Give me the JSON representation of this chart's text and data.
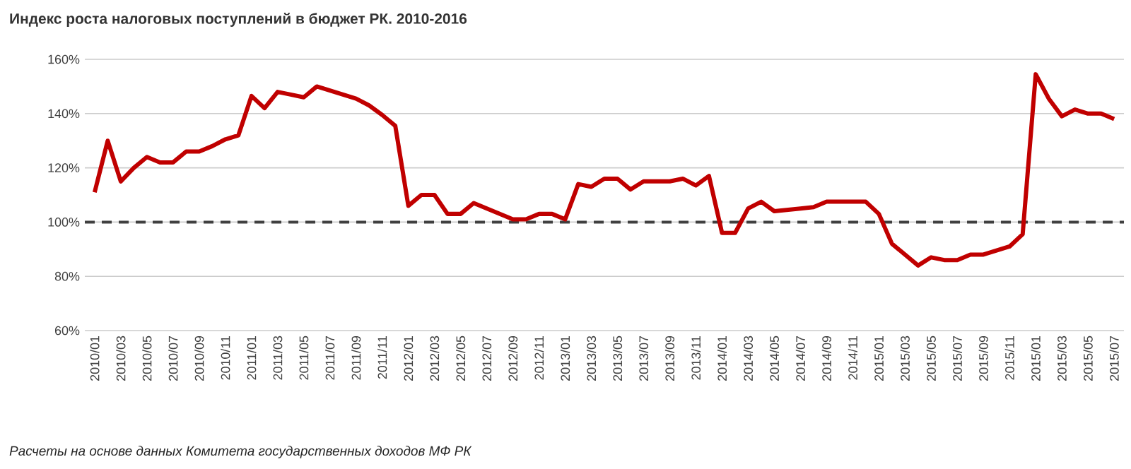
{
  "chart_data": {
    "type": "line",
    "title": "Индекс роста налоговых поступлений  в бюджет РК. 2010-2016",
    "categories": [
      "2010/01",
      null,
      "2010/03",
      null,
      "2010/05",
      null,
      "2010/07",
      null,
      "2010/09",
      null,
      "2010/11",
      null,
      "2011/01",
      null,
      "2011/03",
      null,
      "2011/05",
      null,
      "2011/07",
      null,
      "2011/09",
      null,
      "2011/11",
      null,
      "2012/01",
      null,
      "2012/03",
      null,
      "2012/05",
      null,
      "2012/07",
      null,
      "2012/09",
      null,
      "2012/11",
      null,
      "2013/01",
      null,
      "2013/03",
      null,
      "2013/05",
      null,
      "2013/07",
      null,
      "2013/09",
      null,
      "2013/11",
      null,
      "2014/01",
      null,
      "2014/03",
      null,
      "2014/05",
      null,
      "2014/07",
      null,
      "2014/09",
      null,
      "2014/11",
      null,
      "2015/01",
      null,
      "2015/03",
      null,
      "2015/05",
      null,
      "2015/07",
      null,
      "2015/09",
      null,
      "2015/11",
      null,
      "2015/01",
      null,
      "2015/03",
      null,
      "2015/05",
      null,
      "2015/07"
    ],
    "series": [
      {
        "color": "#c00000",
        "values": [
          111,
          130,
          115,
          120,
          124,
          122,
          122,
          126,
          126,
          128,
          130.5,
          132,
          146.5,
          142,
          148,
          147,
          146,
          150,
          148.5,
          147,
          145.5,
          143,
          139.5,
          135.5,
          106,
          110,
          110,
          103,
          103,
          107,
          105,
          103,
          101,
          101,
          103,
          103,
          101,
          114,
          113,
          116,
          116,
          112,
          115,
          115,
          115,
          116,
          113.5,
          117,
          96,
          96,
          105,
          107.5,
          104,
          104.5,
          105,
          105.5,
          107.5,
          107.5,
          107.5,
          107.5,
          103,
          92,
          88,
          84,
          87,
          86,
          86,
          88,
          88,
          89.5,
          91,
          95.5,
          154.5,
          145.5,
          139,
          141.5,
          140,
          140,
          138
        ]
      }
    ],
    "ylim": [
      60,
      160
    ],
    "yticks": [
      {
        "value": 60,
        "label": "60%"
      },
      {
        "value": 80,
        "label": "80%"
      },
      {
        "value": 100,
        "label": "100%"
      },
      {
        "value": 120,
        "label": "120%"
      },
      {
        "value": 140,
        "label": "140%"
      },
      {
        "value": 160,
        "label": "160%"
      }
    ],
    "grid": "y",
    "marker": "none",
    "line_style": "solid",
    "ref_lines": [
      {
        "axis": "y",
        "value": 100,
        "color": "#404040",
        "line_style": "dashed"
      }
    ],
    "annotations": [
      "Расчеты на основе данных  Комитета государственных доходов МФ РК"
    ]
  }
}
